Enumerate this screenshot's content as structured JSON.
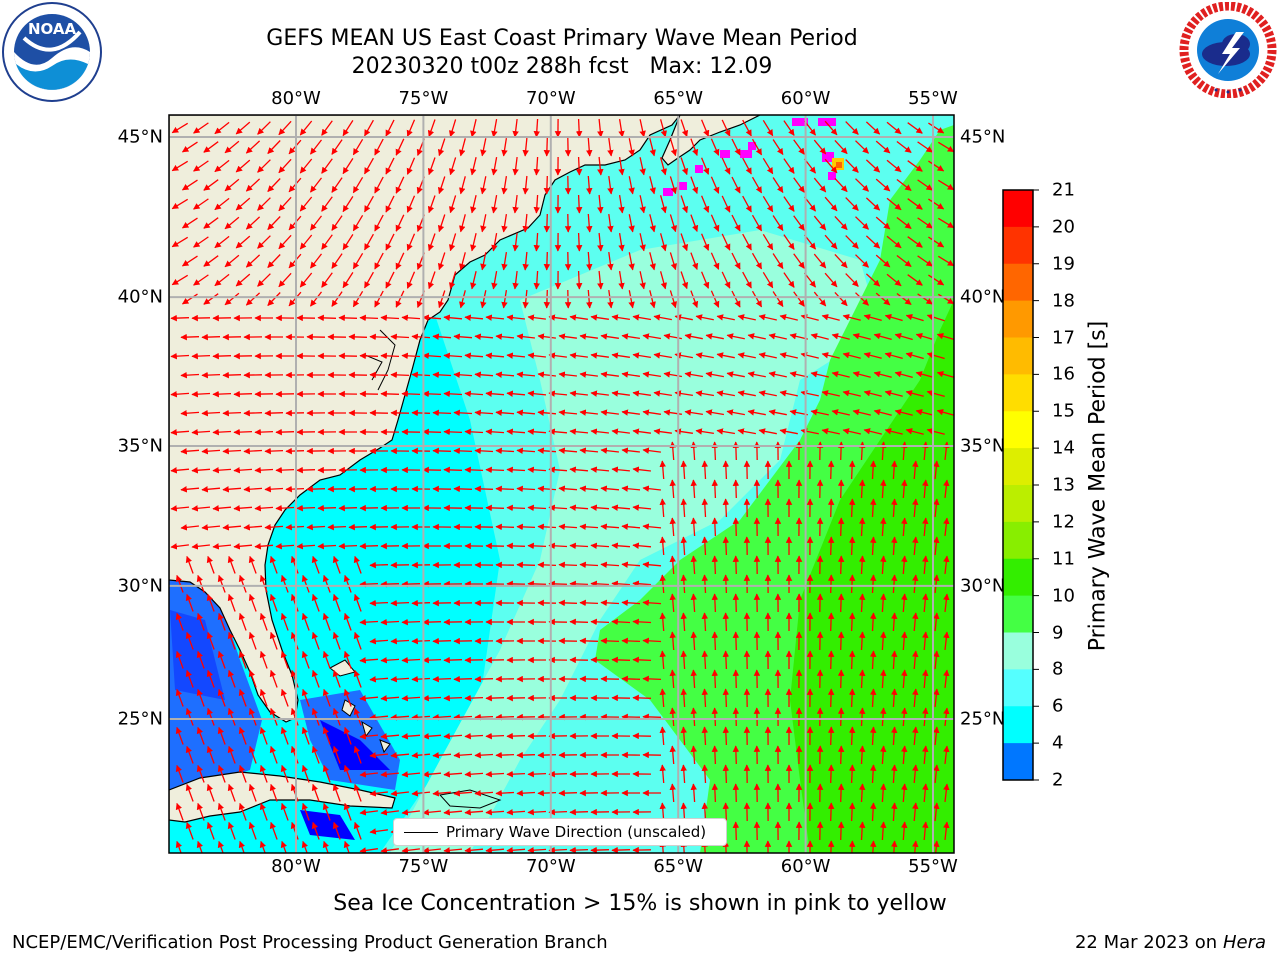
{
  "title": {
    "line1": "GEFS MEAN US East Coast Primary Wave Mean Period",
    "line2": "20230320 t00z 288h fcst   Max: 12.09"
  },
  "logos": {
    "left": {
      "name": "noaa-logo",
      "text": "NOAA",
      "ring_text": "NATIONAL OCEANIC AND ATMOSPHERIC ADMINISTRATION · U.S. DEPARTMENT OF COMMERCE"
    },
    "right": {
      "name": "nws-logo",
      "ring_text": "NATIONAL WEATHER SERVICE"
    }
  },
  "map": {
    "lon_ticks": [
      {
        "lon": -80,
        "label": "80°W"
      },
      {
        "lon": -75,
        "label": "75°W"
      },
      {
        "lon": -70,
        "label": "70°W"
      },
      {
        "lon": -65,
        "label": "65°W"
      },
      {
        "lon": -60,
        "label": "60°W"
      },
      {
        "lon": -55,
        "label": "55°W"
      }
    ],
    "lat_ticks": [
      {
        "lat": 45,
        "label": "45°N"
      },
      {
        "lat": 40,
        "label": "40°N"
      },
      {
        "lat": 35,
        "label": "35°N"
      },
      {
        "lat": 30,
        "label": "30°N"
      },
      {
        "lat": 25,
        "label": "25°N"
      }
    ],
    "legend_label": "Primary Wave Direction (unscaled)",
    "colors": {
      "land": "#efeedc",
      "arrow": "#ff0000",
      "grid": "#b0b0b0",
      "ice": "#ff00ff"
    }
  },
  "colorbar": {
    "label": "Primary Wave Mean Period [s]",
    "ticks": [
      "21",
      "20",
      "19",
      "18",
      "17",
      "16",
      "15",
      "14",
      "13",
      "12",
      "11",
      "10",
      "9",
      "8",
      "6",
      "4",
      "2"
    ],
    "colors": [
      "#ff0000",
      "#ff3300",
      "#ff6600",
      "#ff9900",
      "#ffbb00",
      "#ffdd00",
      "#ffff00",
      "#ddee00",
      "#bbee00",
      "#88ee00",
      "#33ee00",
      "#44ff44",
      "#99ffdd",
      "#55ffff",
      "#00ffff",
      "#0077ff",
      "#0000ff"
    ]
  },
  "ice_note": "Sea Ice Concentration > 15% is shown in pink to yellow",
  "footer": {
    "left": "NCEP/EMC/Verification Post Processing Product Generation Branch",
    "right_date": "22 Mar 2023 on",
    "right_host": "Hera"
  }
}
